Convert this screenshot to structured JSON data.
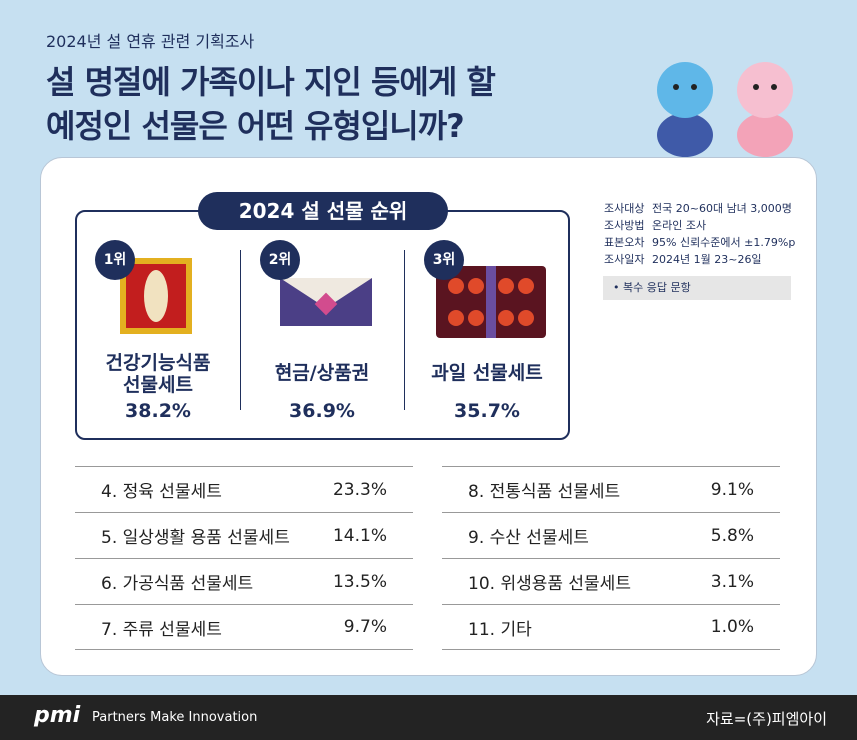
{
  "header": {
    "subtitle": "2024년 설 연휴 관련 기획조사",
    "title": [
      "설 명절에 가족이나 지인 등에게 할",
      "예정인 선물은 어떤 유형입니까?"
    ]
  },
  "top3": {
    "badge": "2024 설 선물 순위",
    "items": [
      {
        "rank": "1위",
        "label": [
          "건강기능식품",
          "선물세트"
        ],
        "value": "38.2%"
      },
      {
        "rank": "2위",
        "label": [
          "현금/상품권"
        ],
        "value": "36.9%"
      },
      {
        "rank": "3위",
        "label": [
          "과일 선물세트"
        ],
        "value": "35.7%"
      }
    ]
  },
  "survey_info": [
    {
      "label": "조사대상",
      "value": "전국 20~60대 남녀 3,000명"
    },
    {
      "label": "조사방법",
      "value": "온라인 조사"
    },
    {
      "label": "표본오차",
      "value": "95% 신뢰수준에서 ±1.79%p"
    },
    {
      "label": "조사일자",
      "value": "2024년 1월 23~26일"
    }
  ],
  "note": "복수 응답 문항",
  "rankings": {
    "left": [
      {
        "label": "4. 정육 선물세트",
        "value": "23.3%"
      },
      {
        "label": "5. 일상생활 용품 선물세트",
        "value": "14.1%"
      },
      {
        "label": "6. 가공식품 선물세트",
        "value": "13.5%"
      },
      {
        "label": "7. 주류 선물세트",
        "value": "9.7%"
      }
    ],
    "right": [
      {
        "label": "8. 전통식품 선물세트",
        "value": "9.1%"
      },
      {
        "label": "9. 수산 선물세트",
        "value": "5.8%"
      },
      {
        "label": "10. 위생용품 선물세트",
        "value": "3.1%"
      },
      {
        "label": "11. 기타",
        "value": "1.0%"
      }
    ]
  },
  "footer": {
    "logo": "pmi",
    "tagline": "Partners Make Innovation",
    "source": "자료=(주)피엠아이"
  }
}
